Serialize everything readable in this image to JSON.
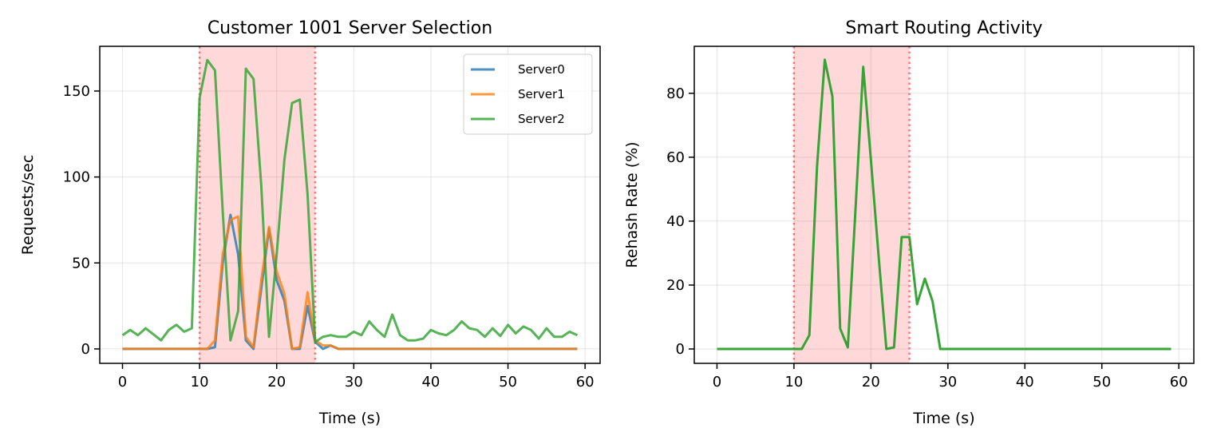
{
  "chart_data": [
    {
      "type": "line",
      "title": "Customer 1001 Server Selection",
      "xlabel": "Time (s)",
      "ylabel": "Requests/sec",
      "xlim": [
        -2.95,
        61.95
      ],
      "ylim": [
        -8.4,
        176
      ],
      "xticks": [
        0,
        10,
        20,
        30,
        40,
        50,
        60
      ],
      "yticks": [
        0,
        50,
        100,
        150
      ],
      "grid": true,
      "legend_placement": "upper right",
      "highlight_span": [
        10,
        25
      ],
      "highlight_color": "#ff0000",
      "x": [
        0,
        1,
        2,
        3,
        4,
        5,
        6,
        7,
        8,
        9,
        10,
        11,
        12,
        13,
        14,
        15,
        16,
        17,
        18,
        19,
        20,
        21,
        22,
        23,
        24,
        25,
        26,
        27,
        28,
        29,
        30,
        31,
        32,
        33,
        34,
        35,
        36,
        37,
        38,
        39,
        40,
        41,
        42,
        43,
        44,
        45,
        46,
        47,
        48,
        49,
        50,
        51,
        52,
        53,
        54,
        55,
        56,
        57,
        58,
        59
      ],
      "series": [
        {
          "name": "Server0",
          "color": "#1f77b4",
          "values": [
            0,
            0,
            0,
            0,
            0,
            0,
            0,
            0,
            0,
            0,
            0,
            0,
            1,
            50,
            78,
            55,
            5,
            0,
            35,
            70,
            40,
            28,
            0,
            0,
            25,
            4,
            0,
            2,
            0,
            0,
            0,
            0,
            0,
            0,
            0,
            0,
            0,
            0,
            0,
            0,
            0,
            0,
            0,
            0,
            0,
            0,
            0,
            0,
            0,
            0,
            0,
            0,
            0,
            0,
            0,
            0,
            0,
            0,
            0,
            0
          ]
        },
        {
          "name": "Server1",
          "color": "#ff7f0e",
          "values": [
            0,
            0,
            0,
            0,
            0,
            0,
            0,
            0,
            0,
            0,
            0,
            0,
            5,
            55,
            75,
            77,
            7,
            1,
            40,
            71,
            45,
            32,
            0,
            1,
            33,
            5,
            2,
            2,
            0,
            0,
            0,
            0,
            0,
            0,
            0,
            0,
            0,
            0,
            0,
            0,
            0,
            0,
            0,
            0,
            0,
            0,
            0,
            0,
            0,
            0,
            0,
            0,
            0,
            0,
            0,
            0,
            0,
            0,
            0,
            0
          ]
        },
        {
          "name": "Server2",
          "color": "#2ca02c",
          "values": [
            8,
            11,
            8,
            12,
            8.5,
            5,
            11,
            14,
            10,
            12,
            146,
            168,
            162,
            80,
            5,
            22,
            163,
            157,
            95,
            7,
            55,
            110,
            143,
            145,
            90,
            4,
            7,
            8,
            7,
            7,
            10,
            8,
            16,
            11,
            7,
            20,
            8,
            5,
            5,
            6,
            11,
            9,
            8,
            11,
            16,
            12,
            11,
            7,
            12,
            7.5,
            14,
            9,
            13,
            11,
            6,
            12,
            7,
            7,
            10,
            8
          ]
        }
      ]
    },
    {
      "type": "line",
      "title": "Smart Routing Activity",
      "xlabel": "Time (s)",
      "ylabel": "Rehash Rate (%)",
      "xlim": [
        -2.95,
        61.95
      ],
      "ylim": [
        -4.5,
        94.7
      ],
      "xticks": [
        0,
        10,
        20,
        30,
        40,
        50,
        60
      ],
      "yticks": [
        0,
        20,
        40,
        60,
        80
      ],
      "grid": true,
      "highlight_span": [
        10,
        25
      ],
      "highlight_color": "#ff0000",
      "x": [
        0,
        1,
        2,
        3,
        4,
        5,
        6,
        7,
        8,
        9,
        10,
        11,
        12,
        13,
        14,
        15,
        16,
        17,
        18,
        19,
        20,
        21,
        22,
        23,
        24,
        25,
        26,
        27,
        28,
        29,
        30,
        31,
        32,
        33,
        34,
        35,
        36,
        37,
        38,
        39,
        40,
        41,
        42,
        43,
        44,
        45,
        46,
        47,
        48,
        49,
        50,
        51,
        52,
        53,
        54,
        55,
        56,
        57,
        58,
        59
      ],
      "series": [
        {
          "color": "#2ca02c",
          "values": [
            0,
            0,
            0,
            0,
            0,
            0,
            0,
            0,
            0,
            0,
            0,
            0,
            4.3,
            57,
            90.5,
            79,
            6.4,
            0.5,
            44,
            88.3,
            59,
            29,
            0,
            0.5,
            35,
            35,
            14,
            22,
            15,
            0,
            0,
            0,
            0,
            0,
            0,
            0,
            0,
            0,
            0,
            0,
            0,
            0,
            0,
            0,
            0,
            0,
            0,
            0,
            0,
            0,
            0,
            0,
            0,
            0,
            0,
            0,
            0,
            0,
            0,
            0
          ]
        }
      ]
    }
  ]
}
